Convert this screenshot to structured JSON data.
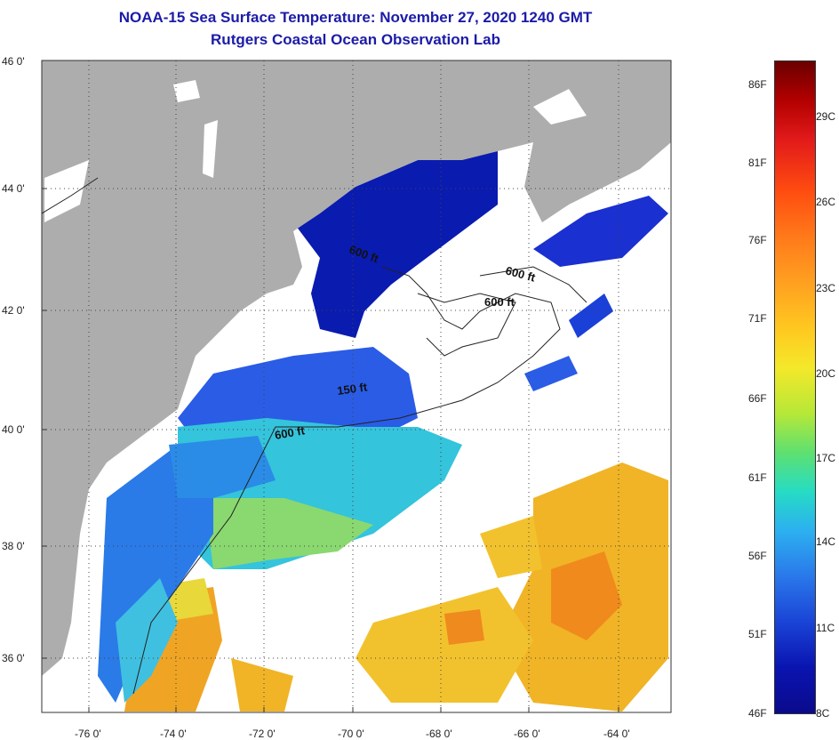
{
  "title": {
    "line1": "NOAA-15 Sea Surface Temperature:  November 27, 2020 1240 GMT",
    "line2": "Rutgers Coastal Ocean Observation Lab"
  },
  "map": {
    "latitude_labels": [
      "46 0'",
      "44 0'",
      "42 0'",
      "40 0'",
      "38 0'",
      "36 0'"
    ],
    "longitude_labels": [
      "-76 0'",
      "-74 0'",
      "-72 0'",
      "-70 0'",
      "-68 0'",
      "-66 0'",
      "-64 0'"
    ],
    "depth_labels": [
      "600 ft",
      "600 ft",
      "600 ft",
      "150 ft",
      "600 ft"
    ]
  },
  "colorbar": {
    "fahrenheit_labels": [
      "86F",
      "81F",
      "76F",
      "71F",
      "66F",
      "61F",
      "56F",
      "51F",
      "46F"
    ],
    "celsius_labels": [
      "29C",
      "26C",
      "23C",
      "20C",
      "17C",
      "14C",
      "11C",
      "8C"
    ]
  },
  "colors": {
    "land": "#adadad",
    "cloud": "#ffffff",
    "title": "#1b1ba8"
  }
}
